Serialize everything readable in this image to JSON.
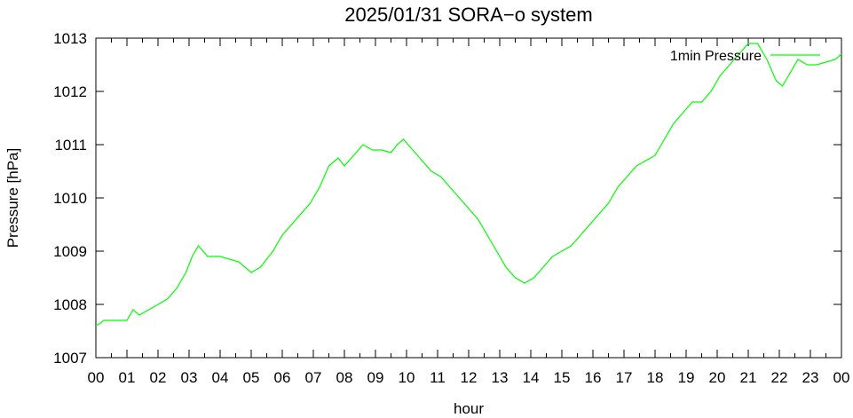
{
  "chart_data": {
    "type": "line",
    "title": "2025/01/31 SORA−o system",
    "xlabel": "hour",
    "ylabel": "Pressure [hPa]",
    "xlim": [
      0,
      24
    ],
    "ylim": [
      1007,
      1013
    ],
    "x_ticks": [
      0,
      1,
      2,
      3,
      4,
      5,
      6,
      7,
      8,
      9,
      10,
      11,
      12,
      13,
      14,
      15,
      16,
      17,
      18,
      19,
      20,
      21,
      22,
      23,
      24
    ],
    "x_tick_labels": [
      "00",
      "01",
      "02",
      "03",
      "04",
      "05",
      "06",
      "07",
      "08",
      "09",
      "10",
      "11",
      "12",
      "13",
      "14",
      "15",
      "16",
      "17",
      "18",
      "19",
      "20",
      "21",
      "22",
      "23",
      "00"
    ],
    "y_ticks": [
      1007,
      1008,
      1009,
      1010,
      1011,
      1012,
      1013
    ],
    "y_tick_labels": [
      "1007",
      "1008",
      "1009",
      "1010",
      "1011",
      "1012",
      "1013"
    ],
    "grid": false,
    "legend_position": "top-right",
    "series": [
      {
        "name": "1min Pressure",
        "color": "#00ff00",
        "x": [
          0,
          0.15,
          0.25,
          0.5,
          0.8,
          1.0,
          1.2,
          1.4,
          1.7,
          2.0,
          2.3,
          2.6,
          2.9,
          3.1,
          3.3,
          3.6,
          4.0,
          4.3,
          4.6,
          5.0,
          5.3,
          5.7,
          6.0,
          6.3,
          6.6,
          6.9,
          7.2,
          7.5,
          7.8,
          8.0,
          8.3,
          8.6,
          8.9,
          9.2,
          9.5,
          9.7,
          9.9,
          10.2,
          10.5,
          10.8,
          11.1,
          11.4,
          11.7,
          12.0,
          12.3,
          12.6,
          12.9,
          13.2,
          13.5,
          13.8,
          14.1,
          14.4,
          14.7,
          15.0,
          15.3,
          15.6,
          15.9,
          16.2,
          16.5,
          16.8,
          17.1,
          17.4,
          17.7,
          18.0,
          18.3,
          18.6,
          18.9,
          19.2,
          19.5,
          19.8,
          20.1,
          20.4,
          20.7,
          21.0,
          21.3,
          21.6,
          21.9,
          22.1,
          22.3,
          22.6,
          22.9,
          23.2,
          23.5,
          23.8,
          24.0
        ],
        "values": [
          1007.6,
          1007.65,
          1007.7,
          1007.7,
          1007.7,
          1007.7,
          1007.9,
          1007.8,
          1007.9,
          1008.0,
          1008.1,
          1008.3,
          1008.6,
          1008.9,
          1009.1,
          1008.9,
          1008.9,
          1008.85,
          1008.8,
          1008.6,
          1008.7,
          1009.0,
          1009.3,
          1009.5,
          1009.7,
          1009.9,
          1010.2,
          1010.6,
          1010.75,
          1010.6,
          1010.8,
          1011.0,
          1010.9,
          1010.9,
          1010.85,
          1011.0,
          1011.1,
          1010.9,
          1010.7,
          1010.5,
          1010.4,
          1010.2,
          1010.0,
          1009.8,
          1009.6,
          1009.3,
          1009.0,
          1008.7,
          1008.5,
          1008.4,
          1008.5,
          1008.7,
          1008.9,
          1009.0,
          1009.1,
          1009.3,
          1009.5,
          1009.7,
          1009.9,
          1010.2,
          1010.4,
          1010.6,
          1010.7,
          1010.8,
          1011.1,
          1011.4,
          1011.6,
          1011.8,
          1011.8,
          1012.0,
          1012.3,
          1012.5,
          1012.7,
          1012.9,
          1012.9,
          1012.6,
          1012.2,
          1012.1,
          1012.3,
          1012.6,
          1012.5,
          1012.5,
          1012.55,
          1012.6,
          1012.7
        ]
      }
    ]
  }
}
